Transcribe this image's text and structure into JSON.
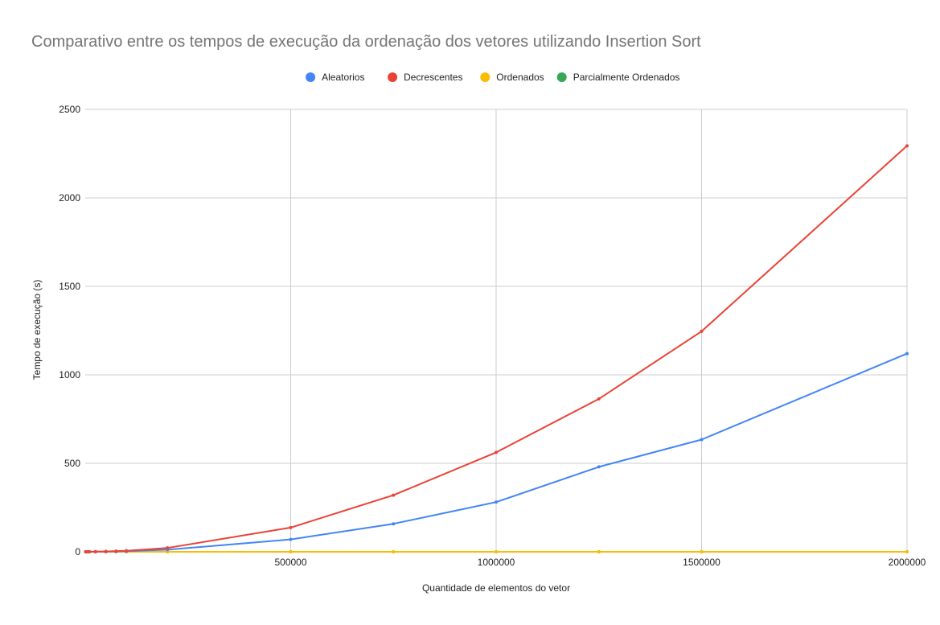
{
  "chart_data": {
    "type": "line",
    "title": "Comparativo entre os tempos de execução da ordenação dos vetores utilizando Insertion Sort",
    "xlabel": "Quantidade de elementos do vetor",
    "ylabel": "Tempo de execução (s)",
    "xlim": [
      0,
      2000000
    ],
    "ylim": [
      0,
      2500
    ],
    "xticks": [
      500000,
      1000000,
      1500000,
      2000000
    ],
    "yticks": [
      0,
      500,
      1000,
      1500,
      2000,
      2500
    ],
    "grid": true,
    "legend_position": "top",
    "series": [
      {
        "name": "Aleatorios",
        "color": "#4285f4",
        "x": [
          1000,
          5000,
          10000,
          25000,
          50000,
          75000,
          100000,
          200000,
          500000,
          750000,
          1000000,
          1250000,
          1500000,
          2000000
        ],
        "y": [
          0,
          0.05,
          0.2,
          0.5,
          1,
          2,
          3,
          12,
          70,
          158,
          281,
          480,
          634,
          1120
        ]
      },
      {
        "name": "Decrescentes",
        "color": "#ea4335",
        "x": [
          1000,
          5000,
          10000,
          25000,
          50000,
          75000,
          100000,
          200000,
          500000,
          750000,
          1000000,
          1250000,
          1500000,
          2000000
        ],
        "y": [
          0,
          0.1,
          0.4,
          1,
          2,
          4,
          6,
          22,
          137,
          320,
          562,
          864,
          1246,
          2294
        ]
      },
      {
        "name": "Ordenados",
        "color": "#fbbc04",
        "x": [
          1000,
          5000,
          10000,
          25000,
          50000,
          75000,
          100000,
          200000,
          500000,
          750000,
          1000000,
          1250000,
          1500000,
          2000000
        ],
        "y": [
          0,
          0,
          0,
          0,
          0,
          0,
          0,
          0,
          0,
          0,
          0,
          0,
          0,
          0
        ]
      },
      {
        "name": "Parcialmente Ordenados",
        "color": "#34a853",
        "x": [
          1000,
          5000,
          10000,
          25000,
          50000,
          75000,
          100000,
          200000,
          500000,
          750000,
          1000000,
          1250000,
          1500000,
          2000000
        ],
        "y": [
          0,
          0,
          0,
          0,
          0,
          0,
          0,
          0,
          0,
          0,
          0,
          0,
          0,
          0
        ]
      }
    ]
  }
}
